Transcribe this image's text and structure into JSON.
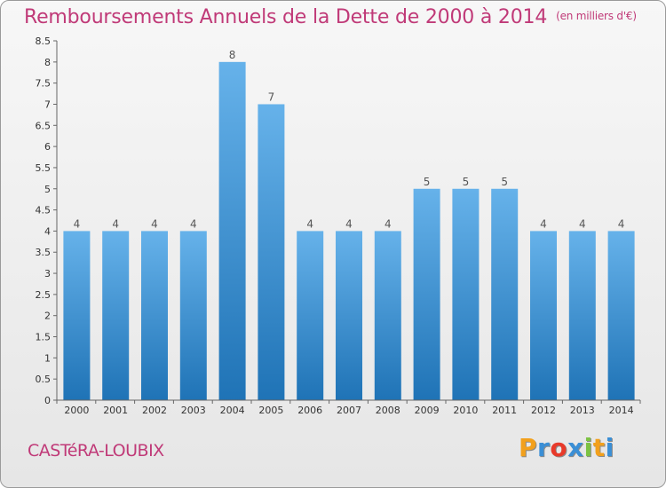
{
  "title": "Remboursements Annuels de la Dette de 2000 à 2014",
  "unit": "(en milliers d'€)",
  "commune": "CASTéRA-LOUBIX",
  "logo": {
    "letters": [
      "P",
      "r",
      "o",
      "x",
      "i",
      "t",
      "i"
    ],
    "colors": [
      "#f2a01c",
      "#3a8fd6",
      "#e83a2a",
      "#3a8fd6",
      "#7cc243",
      "#f2a01c",
      "#3a8fd6"
    ]
  },
  "colors": {
    "bar_top": "#66b2ea",
    "bar_bottom": "#1f73b6",
    "title": "#c03a78"
  },
  "chart_data": {
    "type": "bar",
    "categories": [
      "2000",
      "2001",
      "2002",
      "2003",
      "2004",
      "2005",
      "2006",
      "2007",
      "2008",
      "2009",
      "2010",
      "2011",
      "2012",
      "2013",
      "2014"
    ],
    "values": [
      4,
      4,
      4,
      4,
      8,
      7,
      4,
      4,
      4,
      5,
      5,
      5,
      4,
      4,
      4
    ],
    "data_labels": [
      "4",
      "4",
      "4",
      "4",
      "8",
      "7",
      "4",
      "4",
      "4",
      "5",
      "5",
      "5",
      "4",
      "4",
      "4"
    ],
    "yticks": [
      "0",
      "0.5",
      "1",
      "1.5",
      "2",
      "2.5",
      "3",
      "3.5",
      "4",
      "4.5",
      "5",
      "5.5",
      "6",
      "6.5",
      "7",
      "7.5",
      "8",
      "8.5"
    ],
    "ylim": [
      0,
      8.5
    ],
    "grid": false,
    "legend": "none"
  }
}
